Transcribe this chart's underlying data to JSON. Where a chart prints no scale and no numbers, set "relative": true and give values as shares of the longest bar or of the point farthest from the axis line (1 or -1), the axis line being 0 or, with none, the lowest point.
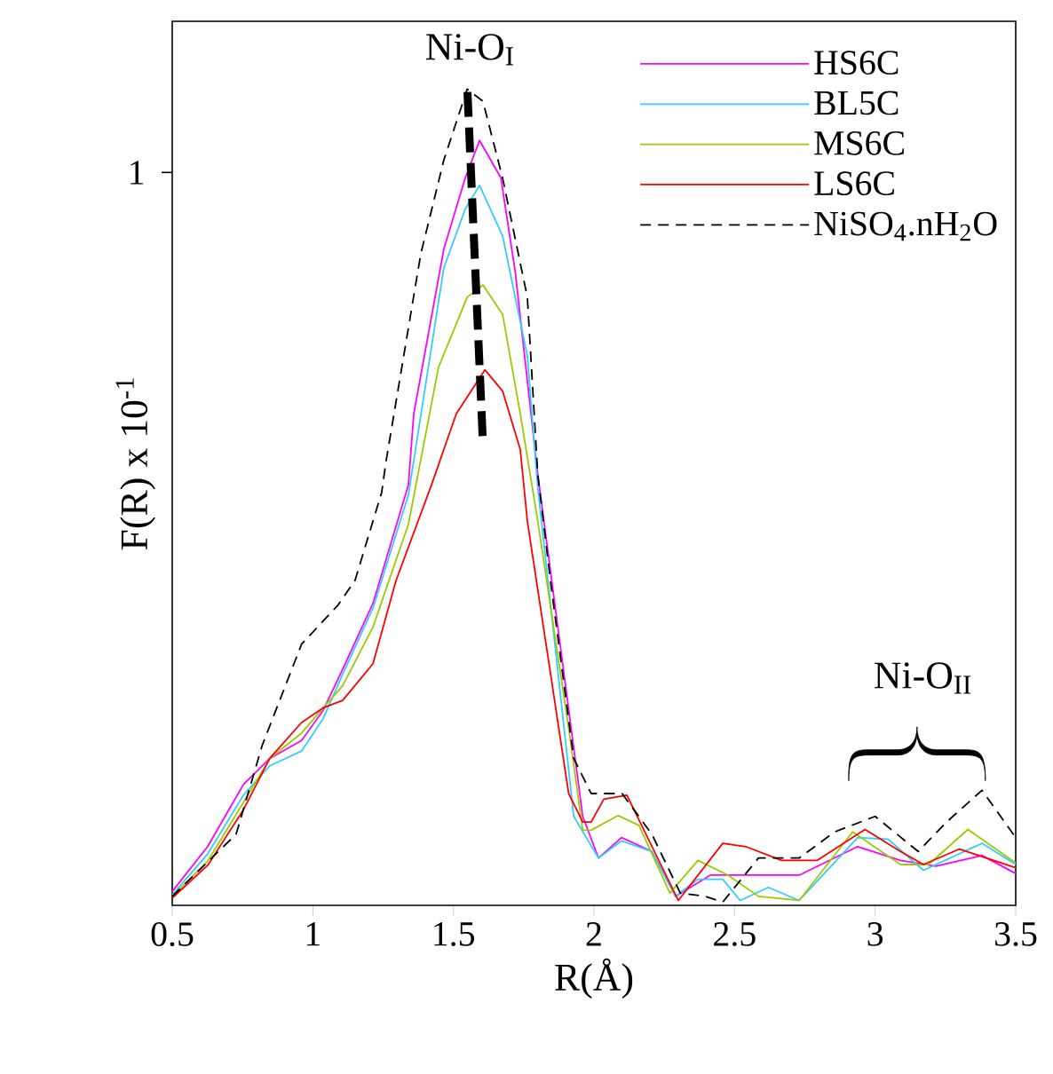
{
  "chart_data": {
    "type": "line",
    "xlabel": "R(Å)",
    "ylabel": "F(R) x 10$^{-1}$",
    "xlim": [
      0.5,
      3.5
    ],
    "xticks": [
      0.5,
      1,
      1.5,
      2,
      2.5,
      3,
      3.5
    ],
    "relative": true,
    "legend": "top right",
    "annotations": [
      "Ni-O$_{I}$",
      "Ni-O$_{II}$",
      "1"
    ],
    "series": [
      {
        "name": "HS6C",
        "color": "#ff00ff",
        "x": [
          0.5,
          0.626,
          0.753,
          0.847,
          0.96,
          1.037,
          1.106,
          1.214,
          1.34,
          1.359,
          1.466,
          1.542,
          1.593,
          1.669,
          1.72,
          1.8,
          1.96,
          2.016,
          2.098,
          2.206,
          2.29,
          2.414,
          2.73,
          2.938,
          3.09,
          3.216,
          3.38,
          3.5
        ],
        "values": [
          0.017,
          0.072,
          0.148,
          0.18,
          0.202,
          0.239,
          0.289,
          0.37,
          0.515,
          0.602,
          0.804,
          0.891,
          0.937,
          0.891,
          0.776,
          0.528,
          0.109,
          0.058,
          0.083,
          0.066,
          0.011,
          0.037,
          0.037,
          0.072,
          0.055,
          0.048,
          0.061,
          0.039
        ]
      },
      {
        "name": "BL5C",
        "color": "#33ccff",
        "x": [
          0.5,
          0.626,
          0.753,
          0.847,
          0.96,
          1.037,
          1.106,
          1.214,
          1.34,
          1.466,
          1.542,
          1.593,
          1.675,
          1.763,
          1.8,
          1.928,
          2.016,
          2.098,
          2.206,
          2.29,
          2.37,
          2.458,
          2.52,
          2.62,
          2.73,
          2.938,
          3.046,
          3.172,
          3.38,
          3.5
        ],
        "values": [
          0.013,
          0.063,
          0.135,
          0.171,
          0.189,
          0.229,
          0.283,
          0.364,
          0.503,
          0.781,
          0.853,
          0.882,
          0.82,
          0.673,
          0.512,
          0.109,
          0.058,
          0.079,
          0.066,
          0.011,
          0.032,
          0.032,
          0.006,
          0.022,
          0.006,
          0.083,
          0.081,
          0.043,
          0.076,
          0.05
        ]
      },
      {
        "name": "MS6C",
        "color": "#99cc00",
        "x": [
          0.5,
          0.626,
          0.753,
          0.847,
          0.96,
          1.037,
          1.106,
          1.214,
          1.34,
          1.447,
          1.549,
          1.605,
          1.675,
          1.738,
          1.8,
          1.91,
          1.96,
          1.99,
          2.086,
          2.16,
          2.27,
          2.37,
          2.477,
          2.585,
          2.73,
          2.92,
          3.09,
          3.19,
          3.33,
          3.5
        ],
        "values": [
          0.011,
          0.054,
          0.126,
          0.18,
          0.211,
          0.242,
          0.269,
          0.341,
          0.467,
          0.659,
          0.745,
          0.76,
          0.724,
          0.602,
          0.471,
          0.217,
          0.092,
          0.092,
          0.11,
          0.098,
          0.015,
          0.055,
          0.037,
          0.011,
          0.006,
          0.09,
          0.05,
          0.05,
          0.093,
          0.052
        ]
      },
      {
        "name": "LS6C",
        "color": "#ff0000",
        "x": [
          0.5,
          0.626,
          0.753,
          0.847,
          0.96,
          1.037,
          1.106,
          1.214,
          1.296,
          1.422,
          1.51,
          1.612,
          1.675,
          1.738,
          1.763,
          1.91,
          1.96,
          1.99,
          2.035,
          2.117,
          2.3,
          2.458,
          2.54,
          2.667,
          2.793,
          2.964,
          3.09,
          3.172,
          3.3,
          3.5
        ],
        "values": [
          0.009,
          0.049,
          0.117,
          0.18,
          0.224,
          0.242,
          0.251,
          0.296,
          0.398,
          0.515,
          0.602,
          0.656,
          0.63,
          0.558,
          0.471,
          0.137,
          0.102,
          0.102,
          0.13,
          0.135,
          0.006,
          0.076,
          0.072,
          0.055,
          0.055,
          0.093,
          0.066,
          0.05,
          0.069,
          0.046
        ]
      },
      {
        "name": "NiSO$_{4}$.nH$_{2}$O",
        "color": "#000000",
        "line_style": "dashed",
        "x": [
          0.5,
          0.727,
          0.82,
          0.96,
          1.09,
          1.15,
          1.245,
          1.26,
          1.384,
          1.466,
          1.549,
          1.605,
          1.675,
          1.763,
          1.8,
          1.845,
          1.928,
          1.99,
          2.1,
          2.206,
          2.307,
          2.395,
          2.458,
          2.585,
          2.73,
          2.856,
          3.0,
          3.153,
          3.254,
          3.38,
          3.5
        ],
        "values": [
          0.011,
          0.087,
          0.196,
          0.32,
          0.368,
          0.398,
          0.506,
          0.543,
          0.798,
          0.913,
          1,
          0.985,
          0.891,
          0.745,
          0.528,
          0.398,
          0.18,
          0.137,
          0.137,
          0.087,
          0.015,
          0.011,
          0.004,
          0.058,
          0.058,
          0.09,
          0.109,
          0.066,
          0.102,
          0.141,
          0.083
        ]
      }
    ]
  }
}
